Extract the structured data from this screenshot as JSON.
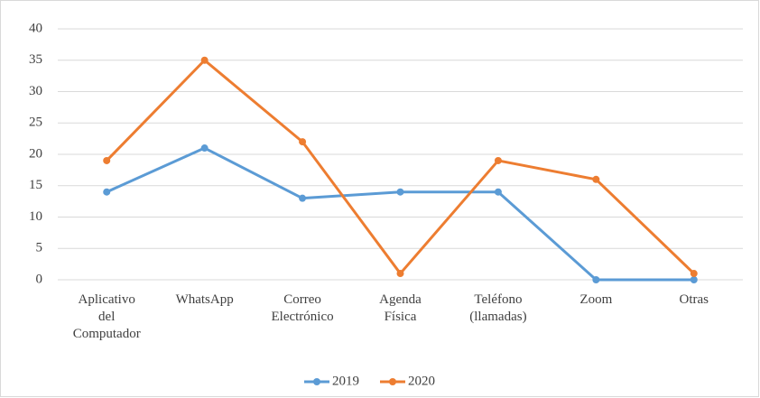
{
  "chart_data": {
    "type": "line",
    "categories": [
      "Aplicativo del Computador",
      "WhatsApp",
      "Correo Electrónico",
      "Agenda Física",
      "Teléfono (llamadas)",
      "Zoom",
      "Otras"
    ],
    "series": [
      {
        "name": "2019",
        "color": "#5b9bd5",
        "values": [
          14,
          21,
          13,
          14,
          14,
          0,
          0
        ]
      },
      {
        "name": "2020",
        "color": "#ed7d31",
        "values": [
          19,
          35,
          22,
          1,
          19,
          16,
          1
        ]
      }
    ],
    "ylim": [
      0,
      40
    ],
    "yticks": [
      0,
      5,
      10,
      15,
      20,
      25,
      30,
      35,
      40
    ],
    "grid": true,
    "legend": "bottom"
  }
}
